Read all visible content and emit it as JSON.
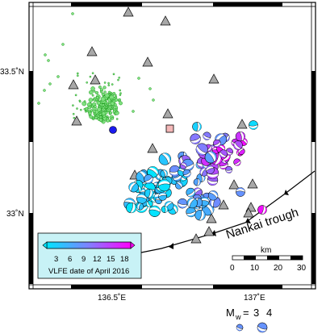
{
  "map": {
    "lat_ticks": [
      "33.5˚N",
      "33˚N"
    ],
    "lon_ticks": [
      "136.5˚E",
      "137˚E"
    ],
    "trough_label": "Nankai trough",
    "scale_bar": {
      "unit": "km",
      "ticks": [
        "0",
        "10",
        "20",
        "30"
      ]
    },
    "colorbar": {
      "ticks": [
        "3",
        "6",
        "9",
        "12",
        "15",
        "18"
      ],
      "caption": "VLFE date of April 2016",
      "colors": [
        "#00e5ff",
        "#7f7fff",
        "#ff00ff"
      ]
    },
    "magnitude_legend": {
      "symbol_main": "M",
      "symbol_sub": "w",
      "equals": "=",
      "values": [
        "3",
        "4"
      ]
    },
    "colors": {
      "frame": "#000000",
      "station_fill": "#a8a8a8",
      "tremor_fill": "#7fe07f",
      "tremor_stroke": "#008800",
      "epicenter_fill": "#1a1aee",
      "pink_square": "#f4b8b8",
      "colorbar_bg": "#c8f2f6"
    },
    "icons": [
      "seismic-station-triangle-icon",
      "beachball-focal-mechanism-icon",
      "epicenter-circle-icon",
      "square-marker-icon"
    ]
  }
}
